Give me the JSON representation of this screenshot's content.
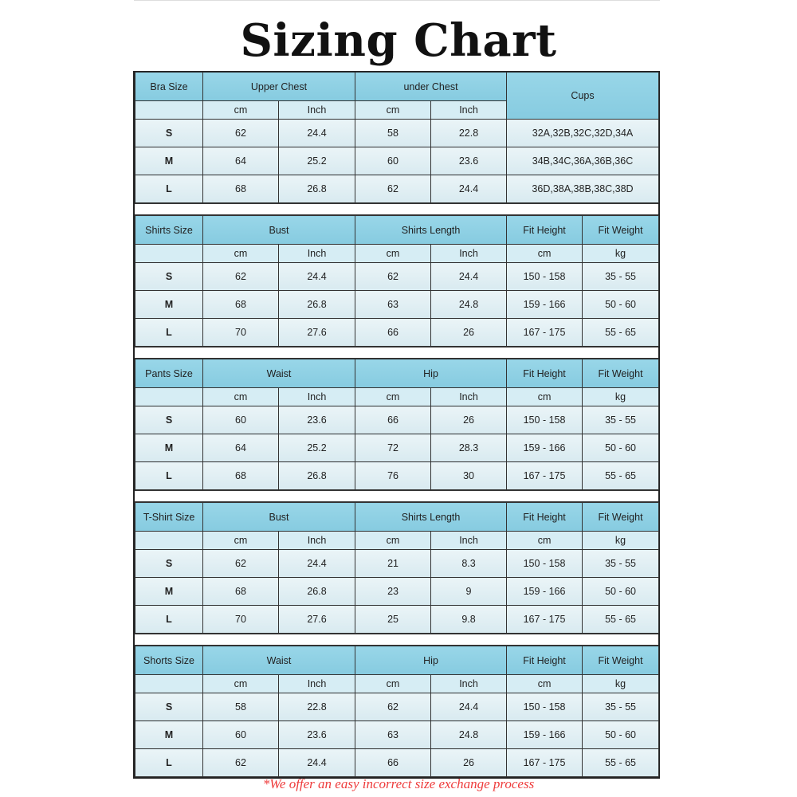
{
  "title": "Sizing Chart",
  "note": "*We offer an easy incorrect size exchange process",
  "colors": {
    "header": "#8fd0e3",
    "subheader": "#d6edf4",
    "row": "#e2f0f4",
    "note": "#ee3b3b"
  },
  "sections": [
    {
      "size_label": "Bra Size",
      "groups": [
        "Upper Chest",
        "under Chest"
      ],
      "extra": [
        "Cups"
      ],
      "sub": [
        "cm",
        "Inch",
        "cm",
        "Inch"
      ],
      "rows": [
        [
          "S",
          "62",
          "24.4",
          "58",
          "22.8",
          "32A,32B,32C,32D,34A"
        ],
        [
          "M",
          "64",
          "25.2",
          "60",
          "23.6",
          "34B,34C,36A,36B,36C"
        ],
        [
          "L",
          "68",
          "26.8",
          "62",
          "24.4",
          "36D,38A,38B,38C,38D"
        ]
      ]
    },
    {
      "size_label": "Shirts Size",
      "groups": [
        "Bust",
        "Shirts Length"
      ],
      "extra": [
        "Fit Height",
        "Fit Weight"
      ],
      "sub": [
        "cm",
        "Inch",
        "cm",
        "Inch",
        "cm",
        "kg"
      ],
      "rows": [
        [
          "S",
          "62",
          "24.4",
          "62",
          "24.4",
          "150 - 158",
          "35 - 55"
        ],
        [
          "M",
          "68",
          "26.8",
          "63",
          "24.8",
          "159 - 166",
          "50 - 60"
        ],
        [
          "L",
          "70",
          "27.6",
          "66",
          "26",
          "167 - 175",
          "55 - 65"
        ]
      ]
    },
    {
      "size_label": "Pants Size",
      "groups": [
        "Waist",
        "Hip"
      ],
      "extra": [
        "Fit Height",
        "Fit Weight"
      ],
      "sub": [
        "cm",
        "Inch",
        "cm",
        "Inch",
        "cm",
        "kg"
      ],
      "rows": [
        [
          "S",
          "60",
          "23.6",
          "66",
          "26",
          "150 - 158",
          "35 - 55"
        ],
        [
          "M",
          "64",
          "25.2",
          "72",
          "28.3",
          "159 - 166",
          "50 - 60"
        ],
        [
          "L",
          "68",
          "26.8",
          "76",
          "30",
          "167 - 175",
          "55 - 65"
        ]
      ]
    },
    {
      "size_label": "T-Shirt Size",
      "groups": [
        "Bust",
        "Shirts Length"
      ],
      "extra": [
        "Fit Height",
        "Fit Weight"
      ],
      "sub": [
        "cm",
        "Inch",
        "cm",
        "Inch",
        "cm",
        "kg"
      ],
      "rows": [
        [
          "S",
          "62",
          "24.4",
          "21",
          "8.3",
          "150 - 158",
          "35 - 55"
        ],
        [
          "M",
          "68",
          "26.8",
          "23",
          "9",
          "159 - 166",
          "50 - 60"
        ],
        [
          "L",
          "70",
          "27.6",
          "25",
          "9.8",
          "167 - 175",
          "55 - 65"
        ]
      ]
    },
    {
      "size_label": "Shorts Size",
      "groups": [
        "Waist",
        "Hip"
      ],
      "extra": [
        "Fit Height",
        "Fit Weight"
      ],
      "sub": [
        "cm",
        "Inch",
        "cm",
        "Inch",
        "cm",
        "kg"
      ],
      "rows": [
        [
          "S",
          "58",
          "22.8",
          "62",
          "24.4",
          "150 - 158",
          "35 - 55"
        ],
        [
          "M",
          "60",
          "23.6",
          "63",
          "24.8",
          "159 - 166",
          "50 - 60"
        ],
        [
          "L",
          "62",
          "24.4",
          "66",
          "26",
          "167 - 175",
          "55 - 65"
        ]
      ]
    }
  ]
}
